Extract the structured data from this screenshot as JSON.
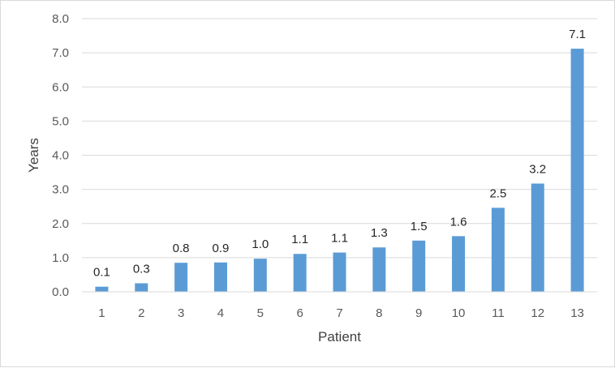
{
  "chart_data": {
    "type": "bar",
    "title": "",
    "xlabel": "Patient",
    "ylabel": "Years",
    "categories": [
      "1",
      "2",
      "3",
      "4",
      "5",
      "6",
      "7",
      "8",
      "9",
      "10",
      "11",
      "12",
      "13"
    ],
    "values": [
      0.15,
      0.25,
      0.85,
      0.86,
      0.97,
      1.11,
      1.15,
      1.3,
      1.5,
      1.63,
      2.46,
      3.17,
      7.12
    ],
    "data_labels": [
      "0.1",
      "0.3",
      "0.8",
      "0.9",
      "1.0",
      "1.1",
      "1.1",
      "1.3",
      "1.5",
      "1.6",
      "2.5",
      "3.2",
      "7.1"
    ],
    "y_ticks": [
      "0.0",
      "1.0",
      "2.0",
      "3.0",
      "4.0",
      "5.0",
      "6.0",
      "7.0",
      "8.0"
    ],
    "ylim": [
      0,
      8
    ],
    "grid": true,
    "legend": "none",
    "colors": {
      "bar": "#5b9bd5",
      "grid": "#d9d9d9"
    }
  }
}
